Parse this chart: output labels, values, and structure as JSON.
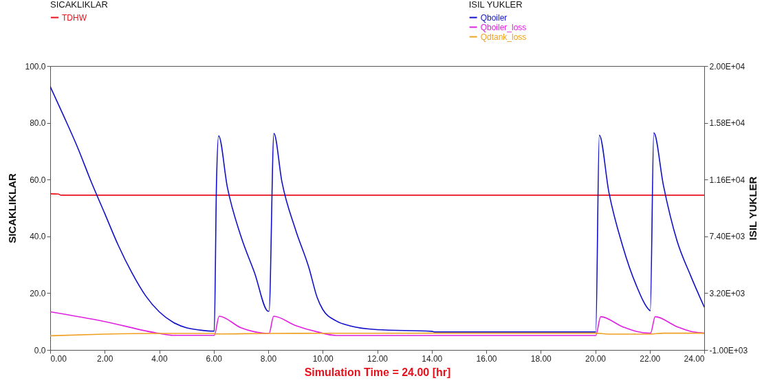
{
  "chart_data": {
    "type": "line",
    "xlabel": "Simulation Time =  24.00 [hr]",
    "ylabel": "SICAKLIKLAR",
    "y2label": "ISIL YUKLER",
    "xlim": [
      0,
      24
    ],
    "xticks": [
      {
        "value": 0,
        "label": "0.00"
      },
      {
        "value": 2,
        "label": "2.00"
      },
      {
        "value": 4,
        "label": "4.00"
      },
      {
        "value": 6,
        "label": "6.00"
      },
      {
        "value": 8,
        "label": "8.00"
      },
      {
        "value": 10,
        "label": "10.00"
      },
      {
        "value": 12,
        "label": "12.00"
      },
      {
        "value": 14,
        "label": "14.00"
      },
      {
        "value": 16,
        "label": "16.00"
      },
      {
        "value": 18,
        "label": "18.00"
      },
      {
        "value": 20,
        "label": "20.00"
      },
      {
        "value": 22,
        "label": "22.00"
      },
      {
        "value": 24,
        "label": "24.00"
      }
    ],
    "ylim": [
      0,
      100
    ],
    "yticks": [
      {
        "value": 0,
        "label": "0.0"
      },
      {
        "value": 20,
        "label": "20.0"
      },
      {
        "value": 40,
        "label": "40.0"
      },
      {
        "value": 60,
        "label": "60.0"
      },
      {
        "value": 80,
        "label": "80.0"
      },
      {
        "value": 100,
        "label": "100.0"
      }
    ],
    "y2lim": [
      -1000,
      20000
    ],
    "y2ticks": [
      {
        "value": -1000,
        "label": "-1.00E+03"
      },
      {
        "value": 3200,
        "label": "3.20E+03"
      },
      {
        "value": 7400,
        "label": "7.40E+03"
      },
      {
        "value": 11600,
        "label": "1.16E+04"
      },
      {
        "value": 15800,
        "label": "1.58E+04"
      },
      {
        "value": 20000,
        "label": "2.00E+04"
      }
    ],
    "grid": false,
    "legend": "top",
    "marker": "none",
    "line_style": "solid",
    "series": [
      {
        "name": "TDHW",
        "color": "#e8101a",
        "x": [
          0,
          0.3,
          0.4,
          24
        ],
        "values": [
          55.0,
          54.9,
          54.5,
          54.5
        ]
      },
      {
        "name": "Qboiler",
        "color": "#1010c8",
        "axis": "y2",
        "x": [
          0,
          0.5,
          1,
          1.5,
          2,
          2.5,
          3,
          3.5,
          4,
          4.5,
          5,
          5.5,
          6,
          6.02,
          6.1,
          6.18,
          6.5,
          7,
          7.5,
          8,
          8.03,
          8.21,
          8.5,
          9,
          9.5,
          9.79,
          10,
          10.5,
          11,
          12,
          14,
          14.1,
          20,
          20.02,
          20.15,
          20.5,
          21,
          21.5,
          22,
          22.02,
          22.15,
          22.5,
          23,
          23.5,
          24
        ],
        "values": [
          18480,
          16280,
          14000,
          11460,
          9100,
          6730,
          4700,
          3010,
          1820,
          1060,
          640,
          470,
          390,
          390,
          11120,
          14840,
          11040,
          7400,
          4700,
          1860,
          1860,
          15010,
          11460,
          7910,
          5040,
          2920,
          2000,
          1140,
          780,
          500,
          380,
          330,
          330,
          330,
          14890,
          10680,
          6730,
          3810,
          1920,
          1890,
          15060,
          11200,
          7080,
          4500,
          2180
        ]
      },
      {
        "name": "Qboiler_loss",
        "color": "#e020e0",
        "axis": "y2",
        "x": [
          0,
          2,
          4,
          4.5,
          6,
          6.02,
          6.2,
          7,
          7.5,
          8,
          8.03,
          8.2,
          9,
          9.79,
          10.5,
          20,
          20.02,
          20.2,
          21,
          21.5,
          22,
          22.03,
          22.2,
          23,
          23.5,
          24
        ],
        "values": [
          1820,
          1100,
          220,
          80,
          80,
          80,
          1490,
          640,
          340,
          220,
          220,
          1490,
          810,
          340,
          70,
          70,
          70,
          1460,
          720,
          370,
          240,
          240,
          1460,
          720,
          370,
          240
        ]
      },
      {
        "name": "Qdtank_loss",
        "color": "#f0a020",
        "axis": "y2",
        "x": [
          0,
          2,
          4,
          6,
          6.05,
          8,
          10,
          14,
          20,
          20.5,
          22,
          22.5,
          24
        ],
        "values": [
          50,
          170,
          220,
          220,
          180,
          220,
          230,
          240,
          240,
          170,
          170,
          240,
          240
        ]
      }
    ]
  }
}
